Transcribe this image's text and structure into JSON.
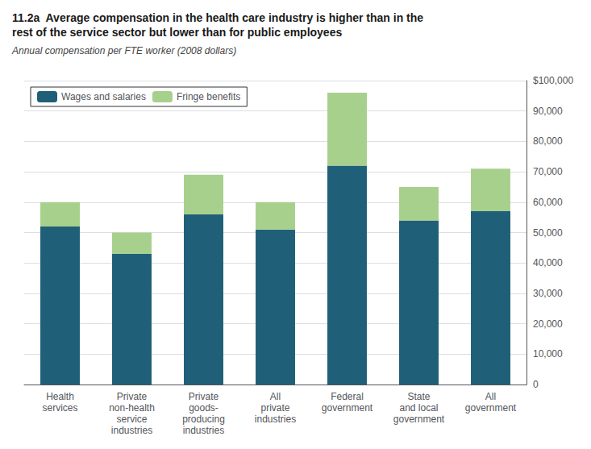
{
  "chart_data": {
    "type": "bar",
    "title": "11.2a  Average compensation in the health care industry is higher than in the\nrest of the service sector but lower than for public employees",
    "subtitle": "Annual compensation per FTE worker (2008 dollars)",
    "categories": [
      "Health\nservices",
      "Private\nnon-health\nservice\nindustries",
      "Private\ngoods-\nproducing\nindustries",
      "All\nprivate\nindustries",
      "Federal\ngovernment",
      "State\nand local\ngovernment",
      "All\ngovernment"
    ],
    "series": [
      {
        "name": "Wages and salaries",
        "color": "#1f5f78",
        "values": [
          52000,
          43000,
          56000,
          51000,
          72000,
          54000,
          57000
        ]
      },
      {
        "name": "Fringe benefits",
        "color": "#a8d08d",
        "values": [
          8000,
          7000,
          13000,
          9000,
          24000,
          11000,
          14000
        ]
      }
    ],
    "stacked": true,
    "ylim": [
      0,
      100000
    ],
    "yticks": [
      0,
      {
        "value": 10000,
        "label": "10,000"
      },
      {
        "value": 20000,
        "label": "20,000"
      },
      {
        "value": 30000,
        "label": "30,000"
      },
      {
        "value": 40000,
        "label": "40,000"
      },
      {
        "value": 50000,
        "label": "50,000"
      },
      {
        "value": 60000,
        "label": "60,000"
      },
      {
        "value": 70000,
        "label": "70,000"
      },
      {
        "value": 80000,
        "label": "80,000"
      },
      {
        "value": 90000,
        "label": "90,000"
      },
      {
        "value": 100000,
        "label": "$100,000"
      }
    ],
    "grid": true,
    "legend": "upper left"
  }
}
